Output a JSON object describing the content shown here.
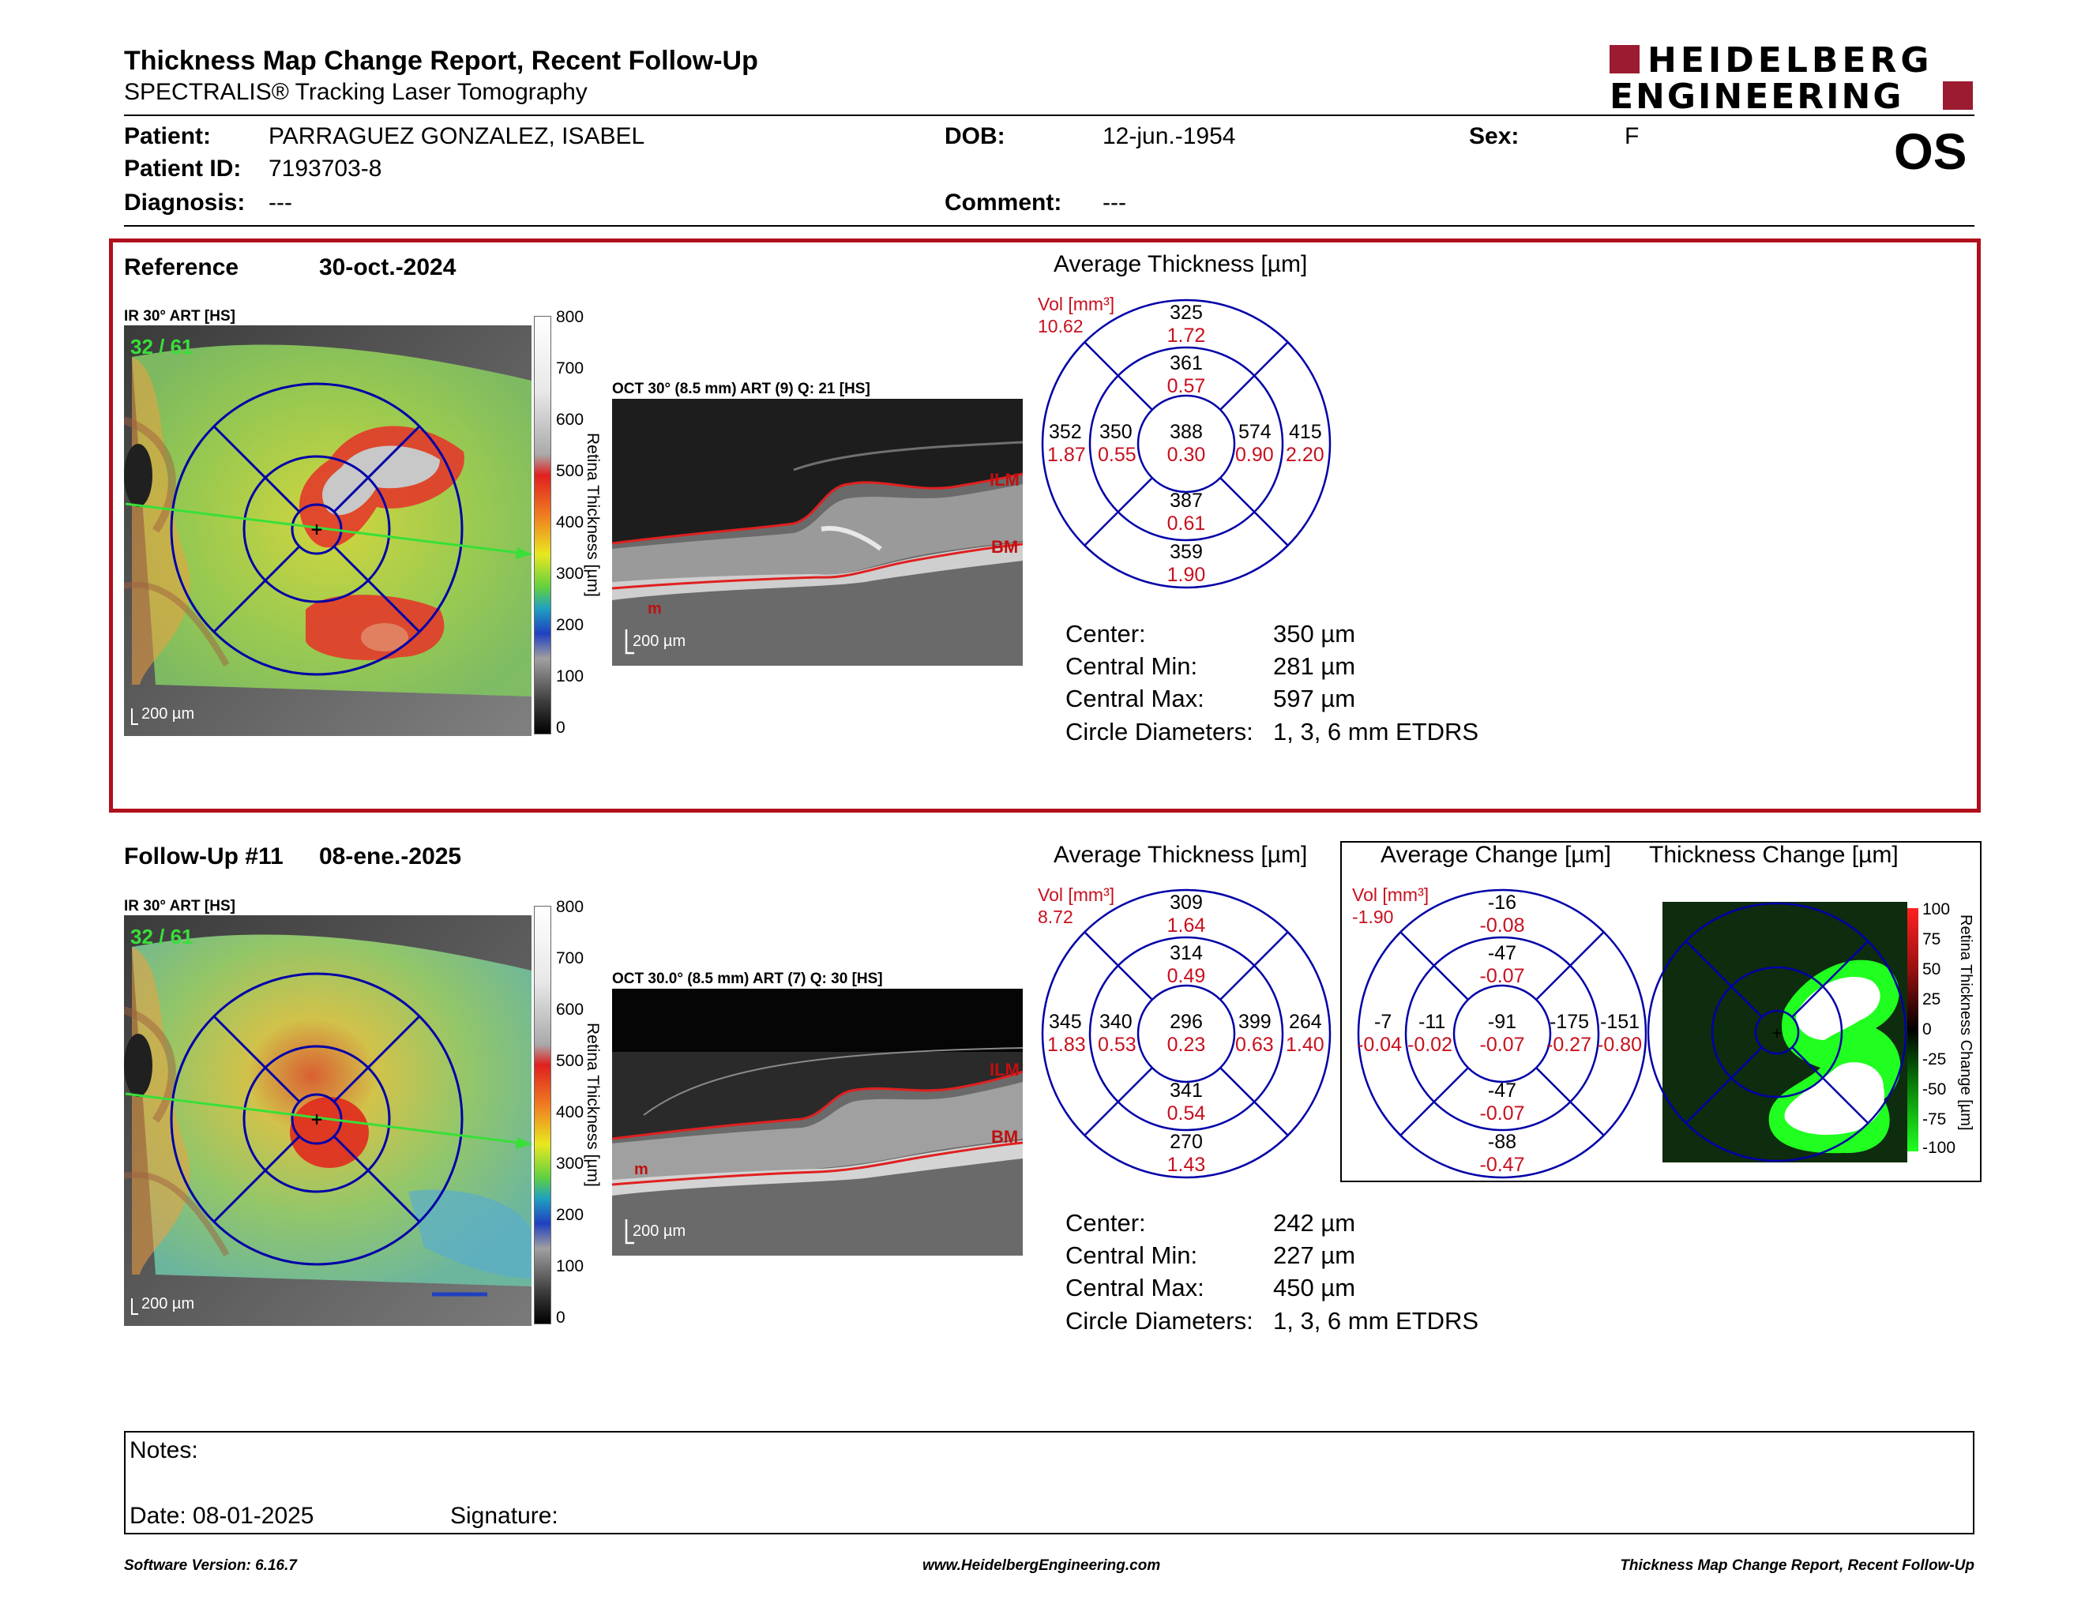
{
  "header": {
    "title": "Thickness Map Change Report, Recent Follow-Up",
    "subtitle": "SPECTRALIS® Tracking Laser Tomography",
    "logo_line1": "HEIDELBERG",
    "logo_line2": "ENGINEERING",
    "eye": "OS"
  },
  "patient": {
    "patient_label": "Patient:",
    "patient_value": "PARRAGUEZ GONZALEZ, ISABEL",
    "dob_label": "DOB:",
    "dob_value": "12-jun.-1954",
    "sex_label": "Sex:",
    "sex_value": "F",
    "id_label": "Patient ID:",
    "id_value": "7193703-8",
    "diagnosis_label": "Diagnosis:",
    "diagnosis_value": "---",
    "comment_label": "Comment:",
    "comment_value": "---"
  },
  "reference": {
    "label": "Reference",
    "date": "30-oct.-2024",
    "ir_label": "IR 30° ART [HS]",
    "ir_counter": "32 / 61",
    "scale_bar": "200 µm",
    "oct_label": "OCT 30° (8.5 mm) ART (9) Q: 21 [HS]",
    "oct_scale": "200 µm",
    "ilm": "ILM",
    "bm": "BM",
    "m": "m",
    "color_scale": [
      "800",
      "700",
      "600",
      "500",
      "400",
      "300",
      "200",
      "100",
      "0"
    ],
    "color_scale_title": "Retina Thickness [µm]",
    "avg_title": "Average Thickness [µm]",
    "vol_label": "Vol [mm³]",
    "vol_value": "10.62",
    "etdrs": {
      "outer_top": {
        "t": "325",
        "v": "1.72"
      },
      "inner_top": {
        "t": "361",
        "v": "0.57"
      },
      "outer_left": {
        "t": "352",
        "v": "1.87"
      },
      "inner_left": {
        "t": "350",
        "v": "0.55"
      },
      "center": {
        "t": "388",
        "v": "0.30"
      },
      "inner_right": {
        "t": "574",
        "v": "0.90"
      },
      "outer_right": {
        "t": "415",
        "v": "2.20"
      },
      "inner_bottom": {
        "t": "387",
        "v": "0.61"
      },
      "outer_bottom": {
        "t": "359",
        "v": "1.90"
      }
    },
    "stats": {
      "center_l": "Center:",
      "center_v": "350 µm",
      "min_l": "Central Min:",
      "min_v": "281 µm",
      "max_l": "Central Max:",
      "max_v": "597 µm",
      "diam_l": "Circle Diameters:",
      "diam_v": "1, 3, 6 mm ETDRS"
    }
  },
  "followup": {
    "label": "Follow-Up #11",
    "date": "08-ene.-2025",
    "ir_label": "IR 30° ART [HS]",
    "ir_counter": "32 / 61",
    "scale_bar": "200 µm",
    "oct_label": "OCT 30.0° (8.5 mm) ART (7) Q: 30 [HS]",
    "oct_scale": "200 µm",
    "ilm": "ILM",
    "bm": "BM",
    "m": "m",
    "color_scale": [
      "800",
      "700",
      "600",
      "500",
      "400",
      "300",
      "200",
      "100",
      "0"
    ],
    "color_scale_title": "Retina Thickness [µm]",
    "avg_title": "Average Thickness [µm]",
    "vol_label": "Vol [mm³]",
    "vol_value": "8.72",
    "etdrs": {
      "outer_top": {
        "t": "309",
        "v": "1.64"
      },
      "inner_top": {
        "t": "314",
        "v": "0.49"
      },
      "outer_left": {
        "t": "345",
        "v": "1.83"
      },
      "inner_left": {
        "t": "340",
        "v": "0.53"
      },
      "center": {
        "t": "296",
        "v": "0.23"
      },
      "inner_right": {
        "t": "399",
        "v": "0.63"
      },
      "outer_right": {
        "t": "264",
        "v": "1.40"
      },
      "inner_bottom": {
        "t": "341",
        "v": "0.54"
      },
      "outer_bottom": {
        "t": "270",
        "v": "1.43"
      }
    },
    "change_title": "Average Change [µm]",
    "change_vol_label": "Vol [mm³]",
    "change_vol_value": "-1.90",
    "change": {
      "outer_top": {
        "t": "-16",
        "v": "-0.08"
      },
      "inner_top": {
        "t": "-47",
        "v": "-0.07"
      },
      "outer_left": {
        "t": "-7",
        "v": "-0.04"
      },
      "inner_left": {
        "t": "-11",
        "v": "-0.02"
      },
      "center": {
        "t": "-91",
        "v": "-0.07"
      },
      "inner_right": {
        "t": "-175",
        "v": "-0.27"
      },
      "outer_right": {
        "t": "-151",
        "v": "-0.80"
      },
      "inner_bottom": {
        "t": "-47",
        "v": "-0.07"
      },
      "outer_bottom": {
        "t": "-88",
        "v": "-0.47"
      }
    },
    "thick_change_title": "Thickness Change [µm]",
    "change_scale": [
      "100",
      "75",
      "50",
      "25",
      "0",
      "-25",
      "-50",
      "-75",
      "-100"
    ],
    "change_scale_title": "Retina Thickness Change [µm]",
    "stats": {
      "center_l": "Center:",
      "center_v": "242 µm",
      "min_l": "Central Min:",
      "min_v": "227 µm",
      "max_l": "Central Max:",
      "max_v": "450 µm",
      "diam_l": "Circle Diameters:",
      "diam_v": "1, 3, 6 mm ETDRS"
    }
  },
  "notes": {
    "notes_label": "Notes:",
    "date_label": "Date: 08-01-2025",
    "signature_label": "Signature:"
  },
  "footer": {
    "version": "Software Version: 6.16.7",
    "url": "www.HeidelbergEngineering.com",
    "report": "Thickness Map Change Report, Recent Follow-Up"
  },
  "colors": {
    "frame_red": "#b0101c",
    "etdrs_blue": "#0000a8",
    "accent_red": "#c8101e",
    "logo_red": "#9b1b30"
  }
}
